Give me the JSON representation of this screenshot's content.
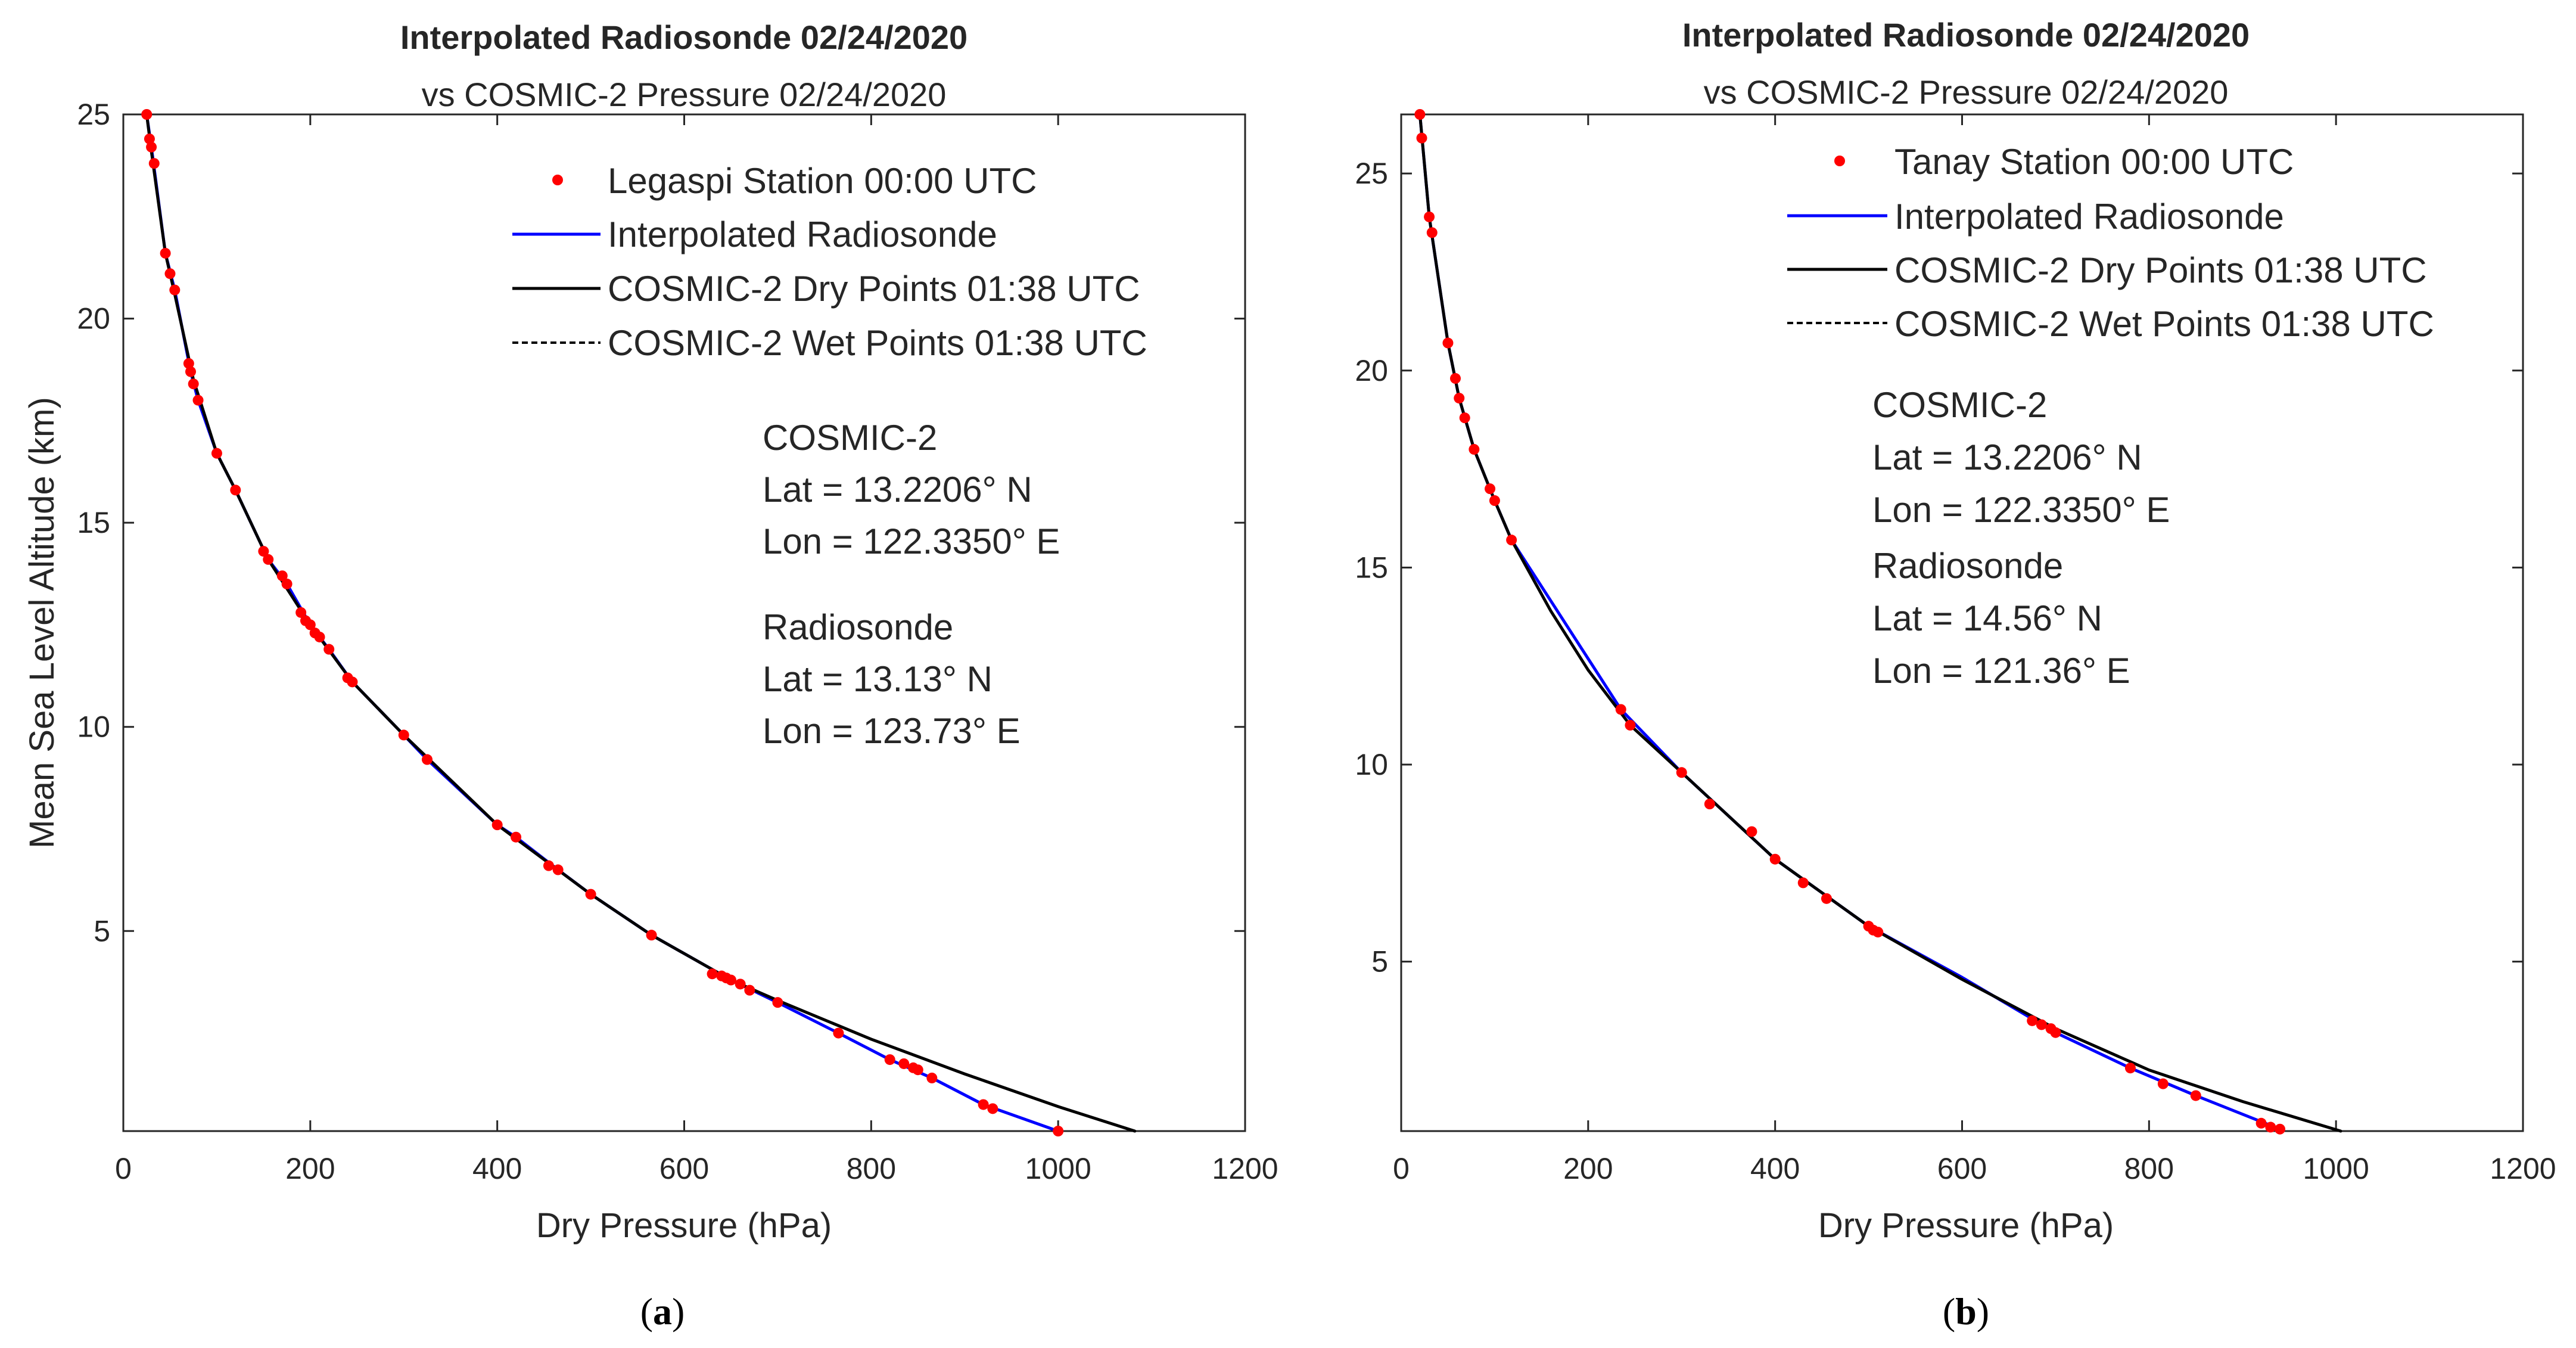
{
  "chart_data": [
    {
      "type": "line",
      "panel_label": "a",
      "title": "Interpolated Radiosonde 02/24/2020",
      "subtitle": "vs COSMIC-2 Pressure 02/24/2020",
      "xlabel": "Dry Pressure (hPa)",
      "ylabel": "Mean Sea Level Altitude (km)",
      "xlim": [
        0,
        1200
      ],
      "ylim": [
        0.1,
        25
      ],
      "xticks": [
        0,
        200,
        400,
        600,
        800,
        1000,
        1200
      ],
      "yticks": [
        5,
        10,
        15,
        20,
        25
      ],
      "legend": [
        "Legaspi Station 00:00 UTC",
        "Interpolated Radiosonde",
        "COSMIC-2 Dry Points 01:38 UTC",
        "COSMIC-2 Wet Points 01:38 UTC"
      ],
      "annotation": [
        "COSMIC-2",
        "Lat = 13.2206° N",
        "Lon = 122.3350° E",
        "Radiosonde",
        "Lat = 13.13° N",
        "Lon = 123.73° E"
      ],
      "series": [
        {
          "name": "Legaspi Station 00:00 UTC",
          "style": "points",
          "color": "#ff0000",
          "x": [
            25,
            28,
            30,
            33,
            45,
            50,
            55,
            70,
            72,
            75,
            80,
            100,
            120,
            150,
            155,
            170,
            175,
            190,
            195,
            200,
            205,
            210,
            220,
            240,
            245,
            300,
            325,
            400,
            420,
            455,
            465,
            500,
            565,
            630,
            640,
            645,
            650,
            660,
            670,
            700,
            765,
            820,
            835,
            845,
            850,
            865,
            920,
            930,
            1000
          ],
          "y": [
            25,
            24.4,
            24.2,
            23.8,
            21.6,
            21.1,
            20.7,
            18.9,
            18.7,
            18.4,
            18.0,
            16.7,
            15.8,
            14.3,
            14.1,
            13.7,
            13.5,
            12.8,
            12.6,
            12.5,
            12.3,
            12.2,
            11.9,
            11.2,
            11.1,
            9.8,
            9.2,
            7.6,
            7.3,
            6.6,
            6.5,
            5.9,
            4.9,
            3.95,
            3.9,
            3.85,
            3.8,
            3.7,
            3.55,
            3.25,
            2.5,
            1.85,
            1.75,
            1.65,
            1.6,
            1.4,
            0.75,
            0.65,
            0.1
          ]
        },
        {
          "name": "Interpolated Radiosonde",
          "style": "line",
          "color": "#0000ff",
          "x": [
            25,
            30,
            45,
            55,
            72,
            80,
            100,
            120,
            155,
            175,
            200,
            220,
            245,
            300,
            325,
            400,
            420,
            465,
            500,
            565,
            650,
            700,
            765,
            820,
            865,
            920,
            1000
          ],
          "y": [
            25,
            24.2,
            21.6,
            20.7,
            18.7,
            18.0,
            16.7,
            15.8,
            14.1,
            13.5,
            12.5,
            11.9,
            11.1,
            9.8,
            9.2,
            7.6,
            7.3,
            6.5,
            5.9,
            4.9,
            3.8,
            3.25,
            2.5,
            1.85,
            1.4,
            0.75,
            0.1
          ]
        },
        {
          "name": "COSMIC-2 Dry Points 01:38 UTC",
          "style": "line",
          "color": "#000000",
          "x": [
            25,
            30,
            45,
            55,
            75,
            100,
            120,
            155,
            200,
            245,
            300,
            400,
            500,
            565,
            650,
            700,
            800,
            900,
            1000,
            1082
          ],
          "y": [
            25,
            24.1,
            21.6,
            20.6,
            18.5,
            16.7,
            15.8,
            14.1,
            12.5,
            11.1,
            9.8,
            7.6,
            5.9,
            4.9,
            3.8,
            3.3,
            2.35,
            1.5,
            0.7,
            0.1
          ]
        },
        {
          "name": "COSMIC-2 Wet Points 01:38 UTC",
          "style": "dashed",
          "color": "#000000",
          "x": [
            25,
            30,
            45,
            55,
            75,
            100,
            120,
            155,
            200,
            245,
            300,
            400,
            500,
            565,
            650,
            700,
            800,
            900,
            1000,
            1082
          ],
          "y": [
            25,
            24.1,
            21.6,
            20.6,
            18.5,
            16.7,
            15.8,
            14.1,
            12.5,
            11.1,
            9.8,
            7.6,
            5.9,
            4.9,
            3.8,
            3.3,
            2.35,
            1.5,
            0.7,
            0.1
          ]
        }
      ]
    },
    {
      "type": "line",
      "panel_label": "b",
      "title": "Interpolated Radiosonde 02/24/2020",
      "subtitle": "vs COSMIC-2 Pressure 02/24/2020",
      "xlabel": "Dry Pressure (hPa)",
      "ylabel": "",
      "xlim": [
        0,
        1200
      ],
      "ylim": [
        0.7,
        26.5
      ],
      "xticks": [
        0,
        200,
        400,
        600,
        800,
        1000,
        1200
      ],
      "yticks": [
        5,
        10,
        15,
        20,
        25
      ],
      "legend": [
        "Tanay Station 00:00 UTC",
        "Interpolated Radiosonde",
        "COSMIC-2 Dry Points 01:38 UTC",
        "COSMIC-2 Wet Points 01:38 UTC"
      ],
      "annotation": [
        "COSMIC-2",
        "Lat = 13.2206° N",
        "Lon = 122.3350° E",
        "Radiosonde",
        "Lat = 14.56° N",
        "Lon = 121.36° E"
      ],
      "series": [
        {
          "name": "Tanay Station 00:00 UTC",
          "style": "points",
          "color": "#ff0000",
          "x": [
            20,
            22,
            30,
            33,
            50,
            58,
            62,
            68,
            78,
            95,
            100,
            118,
            235,
            245,
            300,
            330,
            375,
            400,
            430,
            455,
            500,
            505,
            510,
            675,
            685,
            695,
            700,
            780,
            815,
            850,
            920,
            930,
            940
          ],
          "y": [
            26.5,
            25.9,
            23.9,
            23.5,
            20.7,
            19.8,
            19.3,
            18.8,
            18.0,
            17.0,
            16.7,
            15.7,
            11.4,
            11.0,
            9.8,
            9.0,
            8.3,
            7.6,
            7.0,
            6.6,
            5.9,
            5.8,
            5.75,
            3.5,
            3.4,
            3.3,
            3.2,
            2.3,
            1.9,
            1.6,
            0.9,
            0.8,
            0.75
          ]
        },
        {
          "name": "Interpolated Radiosonde",
          "style": "line",
          "color": "#0000ff",
          "x": [
            20,
            30,
            50,
            62,
            78,
            100,
            118,
            235,
            300,
            400,
            500,
            600,
            700,
            780,
            850,
            940
          ],
          "y": [
            26.5,
            23.9,
            20.7,
            19.3,
            18.0,
            16.7,
            15.7,
            11.4,
            9.8,
            7.6,
            5.9,
            4.6,
            3.2,
            2.3,
            1.6,
            0.75
          ]
        },
        {
          "name": "COSMIC-2 Dry Points 01:38 UTC",
          "style": "line",
          "color": "#000000",
          "x": [
            20,
            30,
            50,
            62,
            78,
            100,
            118,
            160,
            200,
            245,
            300,
            400,
            500,
            600,
            700,
            800,
            900,
            1005
          ],
          "y": [
            26.5,
            23.9,
            20.7,
            19.3,
            18.0,
            16.7,
            15.7,
            13.9,
            12.4,
            11.0,
            9.8,
            7.6,
            5.9,
            4.55,
            3.3,
            2.25,
            1.45,
            0.7
          ]
        },
        {
          "name": "COSMIC-2 Wet Points 01:38 UTC",
          "style": "dashed",
          "color": "#000000",
          "x": [
            20,
            30,
            50,
            62,
            78,
            100,
            118,
            160,
            200,
            245,
            300,
            400,
            500,
            600,
            700,
            800,
            900,
            1005
          ],
          "y": [
            26.5,
            23.9,
            20.7,
            19.3,
            18.0,
            16.7,
            15.7,
            13.9,
            12.4,
            11.0,
            9.8,
            7.6,
            5.9,
            4.55,
            3.3,
            2.25,
            1.45,
            0.7
          ]
        }
      ]
    }
  ]
}
